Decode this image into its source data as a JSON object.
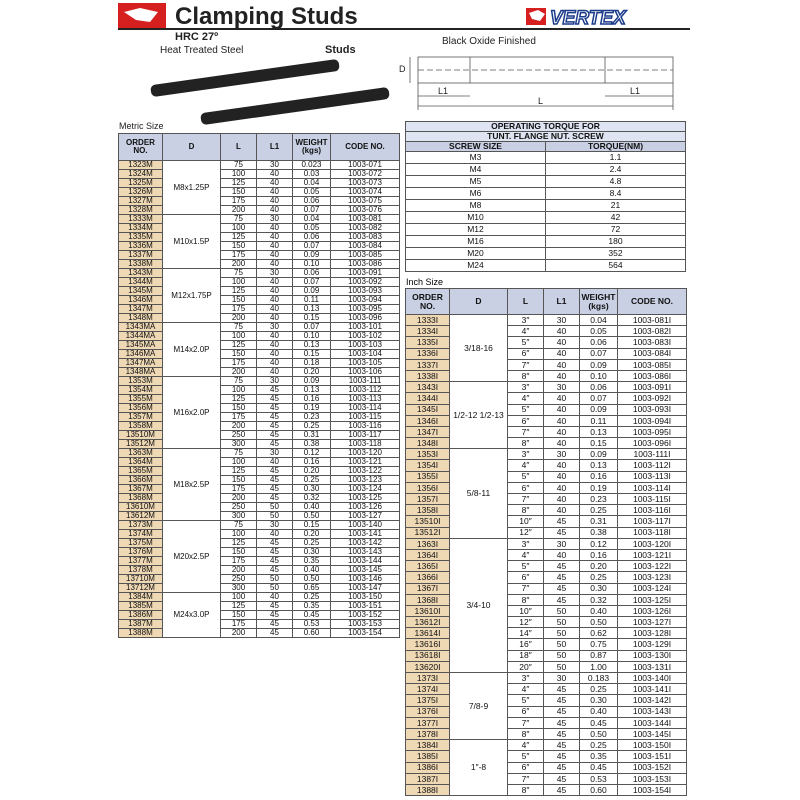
{
  "header": {
    "title": "Clamping Studs",
    "brand": "VERTEX",
    "hardness": "HRC 27º",
    "material": "Heat Treated Steel",
    "studs_label": "Studs",
    "finish": "Black Oxide Finished"
  },
  "diagram": {
    "d": "D",
    "l1_left": "L1",
    "l": "L",
    "l1_right": "L1"
  },
  "metric": {
    "caption": "Metric Size",
    "columns": [
      "ORDER NO.",
      "D",
      "L",
      "L1",
      "WEIGHT (kgs)",
      "CODE NO."
    ],
    "groups": [
      {
        "d": "M8x1.25P",
        "rows": [
          [
            "1323M",
            "75",
            "30",
            "0.023",
            "1003-071"
          ],
          [
            "1324M",
            "100",
            "40",
            "0.03",
            "1003-072"
          ],
          [
            "1325M",
            "125",
            "40",
            "0.04",
            "1003-073"
          ],
          [
            "1326M",
            "150",
            "40",
            "0.05",
            "1003-074"
          ],
          [
            "1327M",
            "175",
            "40",
            "0.06",
            "1003-075"
          ],
          [
            "1328M",
            "200",
            "40",
            "0.07",
            "1003-076"
          ]
        ]
      },
      {
        "d": "M10x1.5P",
        "rows": [
          [
            "1333M",
            "75",
            "30",
            "0.04",
            "1003-081"
          ],
          [
            "1334M",
            "100",
            "40",
            "0.05",
            "1003-082"
          ],
          [
            "1335M",
            "125",
            "40",
            "0.06",
            "1003-083"
          ],
          [
            "1336M",
            "150",
            "40",
            "0.07",
            "1003-084"
          ],
          [
            "1337M",
            "175",
            "40",
            "0.09",
            "1003-085"
          ],
          [
            "1338M",
            "200",
            "40",
            "0.10",
            "1003-086"
          ]
        ]
      },
      {
        "d": "M12x1.75P",
        "rows": [
          [
            "1343M",
            "75",
            "30",
            "0.06",
            "1003-091"
          ],
          [
            "1344M",
            "100",
            "40",
            "0.07",
            "1003-092"
          ],
          [
            "1345M",
            "125",
            "40",
            "0.09",
            "1003-093"
          ],
          [
            "1346M",
            "150",
            "40",
            "0.11",
            "1003-094"
          ],
          [
            "1347M",
            "175",
            "40",
            "0.13",
            "1003-095"
          ],
          [
            "1348M",
            "200",
            "40",
            "0.15",
            "1003-096"
          ]
        ]
      },
      {
        "d": "M14x2.0P",
        "rows": [
          [
            "1343MA",
            "75",
            "30",
            "0.07",
            "1003-101"
          ],
          [
            "1344MA",
            "100",
            "40",
            "0.10",
            "1003-102"
          ],
          [
            "1345MA",
            "125",
            "40",
            "0.13",
            "1003-103"
          ],
          [
            "1346MA",
            "150",
            "40",
            "0.15",
            "1003-104"
          ],
          [
            "1347MA",
            "175",
            "40",
            "0.18",
            "1003-105"
          ],
          [
            "1348MA",
            "200",
            "40",
            "0.20",
            "1003-106"
          ]
        ]
      },
      {
        "d": "M16x2.0P",
        "rows": [
          [
            "1353M",
            "75",
            "30",
            "0.09",
            "1003-111"
          ],
          [
            "1354M",
            "100",
            "45",
            "0.13",
            "1003-112"
          ],
          [
            "1355M",
            "125",
            "45",
            "0.16",
            "1003-113"
          ],
          [
            "1356M",
            "150",
            "45",
            "0.19",
            "1003-114"
          ],
          [
            "1357M",
            "175",
            "45",
            "0.23",
            "1003-115"
          ],
          [
            "1358M",
            "200",
            "45",
            "0.25",
            "1003-116"
          ],
          [
            "13510M",
            "250",
            "45",
            "0.31",
            "1003-117"
          ],
          [
            "13512M",
            "300",
            "45",
            "0.38",
            "1003-118"
          ]
        ]
      },
      {
        "d": "M18x2.5P",
        "rows": [
          [
            "1363M",
            "75",
            "30",
            "0.12",
            "1003-120"
          ],
          [
            "1364M",
            "100",
            "40",
            "0.16",
            "1003-121"
          ],
          [
            "1365M",
            "125",
            "45",
            "0.20",
            "1003-122"
          ],
          [
            "1366M",
            "150",
            "45",
            "0.25",
            "1003-123"
          ],
          [
            "1367M",
            "175",
            "45",
            "0.30",
            "1003-124"
          ],
          [
            "1368M",
            "200",
            "45",
            "0.32",
            "1003-125"
          ],
          [
            "13610M",
            "250",
            "50",
            "0.40",
            "1003-126"
          ],
          [
            "13612M",
            "300",
            "50",
            "0.50",
            "1003-127"
          ]
        ]
      },
      {
        "d": "M20x2.5P",
        "rows": [
          [
            "1373M",
            "75",
            "30",
            "0.15",
            "1003-140"
          ],
          [
            "1374M",
            "100",
            "40",
            "0.20",
            "1003-141"
          ],
          [
            "1375M",
            "125",
            "45",
            "0.25",
            "1003-142"
          ],
          [
            "1376M",
            "150",
            "45",
            "0.30",
            "1003-143"
          ],
          [
            "1377M",
            "175",
            "45",
            "0.35",
            "1003-144"
          ],
          [
            "1378M",
            "200",
            "45",
            "0.40",
            "1003-145"
          ],
          [
            "13710M",
            "250",
            "50",
            "0.50",
            "1003-146"
          ],
          [
            "13712M",
            "300",
            "50",
            "0.65",
            "1003-147"
          ]
        ]
      },
      {
        "d": "M24x3.0P",
        "rows": [
          [
            "1384M",
            "100",
            "40",
            "0.25",
            "1003-150"
          ],
          [
            "1385M",
            "125",
            "45",
            "0.35",
            "1003-151"
          ],
          [
            "1386M",
            "150",
            "45",
            "0.45",
            "1003-152"
          ],
          [
            "1387M",
            "175",
            "45",
            "0.53",
            "1003-153"
          ],
          [
            "1388M",
            "200",
            "45",
            "0.60",
            "1003-154"
          ]
        ]
      }
    ]
  },
  "torque": {
    "title": "OPERATING TORQUE FOR",
    "subtitle": "TUNT. FLANGE NUT. SCREW",
    "columns": [
      "SCREW SIZE",
      "TORQUE(NM)"
    ],
    "rows": [
      [
        "M3",
        "1.1"
      ],
      [
        "M4",
        "2.4"
      ],
      [
        "M5",
        "4.8"
      ],
      [
        "M6",
        "8.4"
      ],
      [
        "M8",
        "21"
      ],
      [
        "M10",
        "42"
      ],
      [
        "M12",
        "72"
      ],
      [
        "M16",
        "180"
      ],
      [
        "M20",
        "352"
      ],
      [
        "M24",
        "564"
      ]
    ]
  },
  "inch": {
    "caption": "Inch Size",
    "columns": [
      "ORDER NO.",
      "D",
      "L",
      "L1",
      "WEIGHT (kgs)",
      "CODE NO."
    ],
    "groups": [
      {
        "d": "3/18-16",
        "rows": [
          [
            "1333I",
            "3″",
            "30",
            "0.04",
            "1003-081I"
          ],
          [
            "1334I",
            "4″",
            "40",
            "0.05",
            "1003-082I"
          ],
          [
            "1335I",
            "5″",
            "40",
            "0.06",
            "1003-083I"
          ],
          [
            "1336I",
            "6″",
            "40",
            "0.07",
            "1003-084I"
          ],
          [
            "1337I",
            "7″",
            "40",
            "0.09",
            "1003-085I"
          ],
          [
            "1338I",
            "8″",
            "40",
            "0.10",
            "1003-086I"
          ]
        ]
      },
      {
        "d": "1/2-12 1/2-13",
        "rows": [
          [
            "1343I",
            "3″",
            "30",
            "0.06",
            "1003-091I"
          ],
          [
            "1344I",
            "4″",
            "40",
            "0.07",
            "1003-092I"
          ],
          [
            "1345I",
            "5″",
            "40",
            "0.09",
            "1003-093I"
          ],
          [
            "1346I",
            "6″",
            "40",
            "0.11",
            "1003-094I"
          ],
          [
            "1347I",
            "7″",
            "40",
            "0.13",
            "1003-095I"
          ],
          [
            "1348I",
            "8″",
            "40",
            "0.15",
            "1003-096I"
          ]
        ]
      },
      {
        "d": "5/8-11",
        "rows": [
          [
            "1353I",
            "3″",
            "30",
            "0.09",
            "1003-111I"
          ],
          [
            "1354I",
            "4″",
            "40",
            "0.13",
            "1003-112I"
          ],
          [
            "1355I",
            "5″",
            "40",
            "0.16",
            "1003-113I"
          ],
          [
            "1356I",
            "6″",
            "40",
            "0.19",
            "1003-114I"
          ],
          [
            "1357I",
            "7″",
            "40",
            "0.23",
            "1003-115I"
          ],
          [
            "1358I",
            "8″",
            "40",
            "0.25",
            "1003-116I"
          ],
          [
            "13510I",
            "10″",
            "45",
            "0.31",
            "1003-117I"
          ],
          [
            "13512I",
            "12″",
            "45",
            "0.38",
            "1003-118I"
          ]
        ]
      },
      {
        "d": "3/4-10",
        "rows": [
          [
            "1363I",
            "3″",
            "30",
            "0.12",
            "1003-120I"
          ],
          [
            "1364I",
            "4″",
            "40",
            "0.16",
            "1003-121I"
          ],
          [
            "1365I",
            "5″",
            "45",
            "0.20",
            "1003-122I"
          ],
          [
            "1366I",
            "6″",
            "45",
            "0.25",
            "1003-123I"
          ],
          [
            "1367I",
            "7″",
            "45",
            "0.30",
            "1003-124I"
          ],
          [
            "1368I",
            "8″",
            "45",
            "0.32",
            "1003-125I"
          ],
          [
            "13610I",
            "10″",
            "50",
            "0.40",
            "1003-126I"
          ],
          [
            "13612I",
            "12″",
            "50",
            "0.50",
            "1003-127I"
          ],
          [
            "13614I",
            "14″",
            "50",
            "0.62",
            "1003-128I"
          ],
          [
            "13616I",
            "16″",
            "50",
            "0.75",
            "1003-129I"
          ],
          [
            "13618I",
            "18″",
            "50",
            "0.87",
            "1003-130I"
          ],
          [
            "13620I",
            "20″",
            "50",
            "1.00",
            "1003-131I"
          ]
        ]
      },
      {
        "d": "7/8-9",
        "rows": [
          [
            "1373I",
            "3″",
            "30",
            "0.183",
            "1003-140I"
          ],
          [
            "1374I",
            "4″",
            "45",
            "0.25",
            "1003-141I"
          ],
          [
            "1375I",
            "5″",
            "45",
            "0.30",
            "1003-142I"
          ],
          [
            "1376I",
            "6″",
            "45",
            "0.40",
            "1003-143I"
          ],
          [
            "1377I",
            "7″",
            "45",
            "0.45",
            "1003-144I"
          ],
          [
            "1378I",
            "8″",
            "45",
            "0.50",
            "1003-145I"
          ]
        ]
      },
      {
        "d": "1″-8",
        "rows": [
          [
            "1384I",
            "4″",
            "45",
            "0.25",
            "1003-150I"
          ],
          [
            "1385I",
            "5″",
            "45",
            "0.35",
            "1003-151I"
          ],
          [
            "1386I",
            "6″",
            "45",
            "0.45",
            "1003-152I"
          ],
          [
            "1387I",
            "7″",
            "45",
            "0.53",
            "1003-153I"
          ],
          [
            "1388I",
            "8″",
            "45",
            "0.60",
            "1003-154I"
          ]
        ]
      }
    ]
  }
}
